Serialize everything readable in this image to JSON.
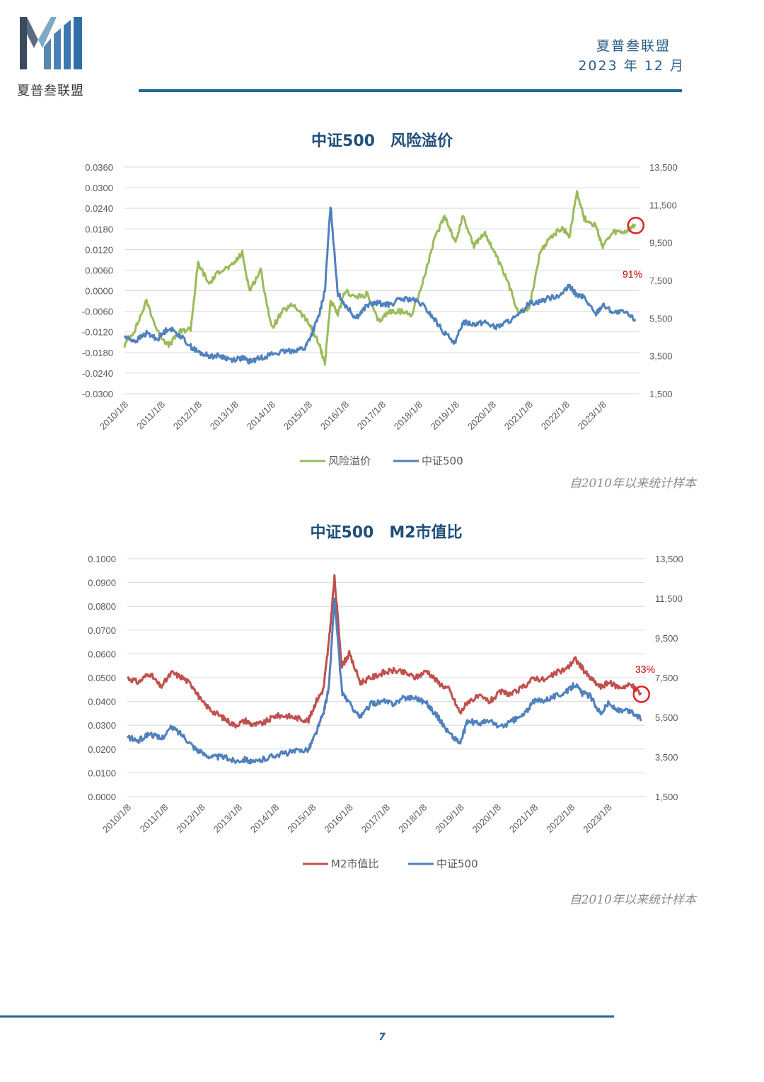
{
  "header": {
    "logo_text": "夏普叁联盟",
    "org": "夏普叁联盟",
    "date": "2023 年 12 月"
  },
  "page_number": "7",
  "colors": {
    "risk_premium": "#9bbb59",
    "m2_ratio": "#c0504d",
    "csi500": "#4f81bd",
    "highlight": "#e02020",
    "title": "#1f4e79",
    "rule": "#1f6a94"
  },
  "chart_data": [
    {
      "type": "line",
      "title": "中证500　风险溢价",
      "note": "自2010年以来统计样本",
      "annotation": "91%",
      "x_ticks": [
        "2010/1/8",
        "2011/1/8",
        "2012/1/8",
        "2013/1/8",
        "2014/1/8",
        "2015/1/8",
        "2016/1/8",
        "2017/1/8",
        "2018/1/8",
        "2019/1/8",
        "2020/1/8",
        "2021/1/8",
        "2022/1/8",
        "2023/1/8"
      ],
      "x_range": [
        2010.0,
        2024.0
      ],
      "y_left_ticks": [
        "0.0360",
        "0.0300",
        "0.0240",
        "0.0180",
        "0.0120",
        "0.0060",
        "0.0000",
        "-0.0060",
        "-0.0120",
        "-0.0180",
        "-0.0240",
        "-0.0300"
      ],
      "y_left_range": [
        -0.03,
        0.036
      ],
      "y_right_ticks": [
        "13,500",
        "11,500",
        "9,500",
        "7,500",
        "5,500",
        "3,500",
        "1,500"
      ],
      "y_right_range": [
        1500,
        13500
      ],
      "series": [
        {
          "name": "风险溢价",
          "axis": "left",
          "x": [
            2010.0,
            2010.3,
            2010.6,
            2010.9,
            2011.2,
            2011.5,
            2011.8,
            2012.0,
            2012.3,
            2012.6,
            2012.9,
            2013.2,
            2013.4,
            2013.7,
            2014.0,
            2014.3,
            2014.6,
            2014.9,
            2015.1,
            2015.3,
            2015.45,
            2015.6,
            2015.8,
            2016.0,
            2016.3,
            2016.6,
            2016.9,
            2017.2,
            2017.5,
            2017.8,
            2018.1,
            2018.4,
            2018.7,
            2019.0,
            2019.2,
            2019.5,
            2019.8,
            2020.1,
            2020.4,
            2020.7,
            2021.0,
            2021.3,
            2021.6,
            2021.9,
            2022.1,
            2022.3,
            2022.5,
            2022.8,
            2023.0,
            2023.3,
            2023.6,
            2023.9
          ],
          "values": [
            -0.016,
            -0.011,
            -0.003,
            -0.012,
            -0.016,
            -0.012,
            -0.011,
            0.008,
            0.002,
            0.006,
            0.007,
            0.011,
            0.0,
            0.006,
            -0.011,
            -0.006,
            -0.004,
            -0.008,
            -0.011,
            -0.016,
            -0.021,
            -0.003,
            -0.007,
            0.0,
            -0.002,
            -0.001,
            -0.009,
            -0.006,
            -0.006,
            -0.007,
            0.002,
            0.014,
            0.022,
            0.014,
            0.022,
            0.013,
            0.017,
            0.01,
            0.003,
            -0.006,
            -0.005,
            0.011,
            0.016,
            0.018,
            0.016,
            0.029,
            0.021,
            0.019,
            0.013,
            0.017,
            0.017,
            0.019
          ]
        },
        {
          "name": "中证500",
          "axis": "right",
          "x": [
            2010.0,
            2010.3,
            2010.6,
            2010.9,
            2011.2,
            2011.5,
            2011.8,
            2012.0,
            2012.3,
            2012.6,
            2012.9,
            2013.2,
            2013.4,
            2013.7,
            2014.0,
            2014.3,
            2014.6,
            2014.9,
            2015.1,
            2015.3,
            2015.45,
            2015.6,
            2015.8,
            2016.0,
            2016.3,
            2016.6,
            2016.9,
            2017.2,
            2017.5,
            2017.8,
            2018.1,
            2018.4,
            2018.7,
            2019.0,
            2019.2,
            2019.5,
            2019.8,
            2020.1,
            2020.4,
            2020.7,
            2021.0,
            2021.3,
            2021.6,
            2021.9,
            2022.1,
            2022.3,
            2022.5,
            2022.8,
            2023.0,
            2023.3,
            2023.6,
            2023.9
          ],
          "values": [
            4500,
            4300,
            4700,
            4400,
            5000,
            4600,
            4000,
            3700,
            3500,
            3500,
            3300,
            3400,
            3200,
            3400,
            3600,
            3700,
            3800,
            3900,
            4700,
            5700,
            7000,
            11500,
            6800,
            6200,
            5500,
            6200,
            6300,
            6200,
            6500,
            6500,
            6200,
            5500,
            4700,
            4200,
            5300,
            5200,
            5300,
            5000,
            5300,
            5600,
            6300,
            6400,
            6600,
            6800,
            7200,
            6700,
            6600,
            5700,
            6200,
            5800,
            5800,
            5400
          ]
        }
      ]
    },
    {
      "type": "line",
      "title": "中证500　M2市值比",
      "note": "自2010年以来统计样本",
      "annotation": "33%",
      "x_ticks": [
        "2010/1/8",
        "2011/1/8",
        "2012/1/8",
        "2013/1/8",
        "2014/1/8",
        "2015/1/8",
        "2016/1/8",
        "2017/1/8",
        "2018/1/8",
        "2019/1/8",
        "2020/1/8",
        "2021/1/8",
        "2022/1/8",
        "2023/1/8"
      ],
      "x_range": [
        2010.0,
        2024.0
      ],
      "y_left_ticks": [
        "0.1000",
        "0.0900",
        "0.0800",
        "0.0700",
        "0.0600",
        "0.0500",
        "0.0400",
        "0.0300",
        "0.0200",
        "0.0100",
        "0.0000"
      ],
      "y_left_range": [
        0,
        0.1
      ],
      "y_right_ticks": [
        "13,500",
        "11,500",
        "9,500",
        "7,500",
        "5,500",
        "3,500",
        "1,500"
      ],
      "y_right_range": [
        1500,
        13500
      ],
      "series": [
        {
          "name": "M2市值比",
          "axis": "left",
          "x": [
            2010.0,
            2010.3,
            2010.6,
            2010.9,
            2011.2,
            2011.5,
            2011.8,
            2012.0,
            2012.3,
            2012.6,
            2012.9,
            2013.2,
            2013.4,
            2013.7,
            2014.0,
            2014.3,
            2014.6,
            2014.9,
            2015.1,
            2015.3,
            2015.45,
            2015.6,
            2015.8,
            2016.0,
            2016.3,
            2016.6,
            2016.9,
            2017.2,
            2017.5,
            2017.8,
            2018.1,
            2018.4,
            2018.7,
            2019.0,
            2019.2,
            2019.5,
            2019.8,
            2020.1,
            2020.4,
            2020.7,
            2021.0,
            2021.3,
            2021.6,
            2021.9,
            2022.1,
            2022.3,
            2022.5,
            2022.8,
            2023.0,
            2023.3,
            2023.6,
            2023.9
          ],
          "values": [
            0.05,
            0.048,
            0.052,
            0.046,
            0.052,
            0.05,
            0.046,
            0.04,
            0.036,
            0.033,
            0.03,
            0.032,
            0.03,
            0.031,
            0.034,
            0.034,
            0.033,
            0.032,
            0.04,
            0.045,
            0.065,
            0.092,
            0.055,
            0.06,
            0.048,
            0.05,
            0.052,
            0.053,
            0.052,
            0.05,
            0.053,
            0.048,
            0.045,
            0.035,
            0.04,
            0.042,
            0.04,
            0.044,
            0.043,
            0.046,
            0.05,
            0.049,
            0.052,
            0.054,
            0.058,
            0.054,
            0.05,
            0.046,
            0.048,
            0.046,
            0.047,
            0.043
          ]
        },
        {
          "name": "中证500",
          "axis": "right",
          "x": [
            2010.0,
            2010.3,
            2010.6,
            2010.9,
            2011.2,
            2011.5,
            2011.8,
            2012.0,
            2012.3,
            2012.6,
            2012.9,
            2013.2,
            2013.4,
            2013.7,
            2014.0,
            2014.3,
            2014.6,
            2014.9,
            2015.1,
            2015.3,
            2015.45,
            2015.6,
            2015.8,
            2016.0,
            2016.3,
            2016.6,
            2016.9,
            2017.2,
            2017.5,
            2017.8,
            2018.1,
            2018.4,
            2018.7,
            2019.0,
            2019.2,
            2019.5,
            2019.8,
            2020.1,
            2020.4,
            2020.7,
            2021.0,
            2021.3,
            2021.6,
            2021.9,
            2022.1,
            2022.3,
            2022.5,
            2022.8,
            2023.0,
            2023.3,
            2023.6,
            2023.9
          ],
          "values": [
            4500,
            4300,
            4700,
            4400,
            5000,
            4600,
            4000,
            3700,
            3500,
            3500,
            3300,
            3400,
            3200,
            3400,
            3600,
            3700,
            3800,
            3900,
            4700,
            5700,
            7000,
            11500,
            6800,
            6200,
            5500,
            6200,
            6300,
            6200,
            6500,
            6500,
            6200,
            5500,
            4700,
            4200,
            5300,
            5200,
            5300,
            5000,
            5300,
            5600,
            6300,
            6400,
            6600,
            6800,
            7200,
            6700,
            6600,
            5700,
            6200,
            5800,
            5800,
            5400
          ]
        }
      ]
    }
  ]
}
